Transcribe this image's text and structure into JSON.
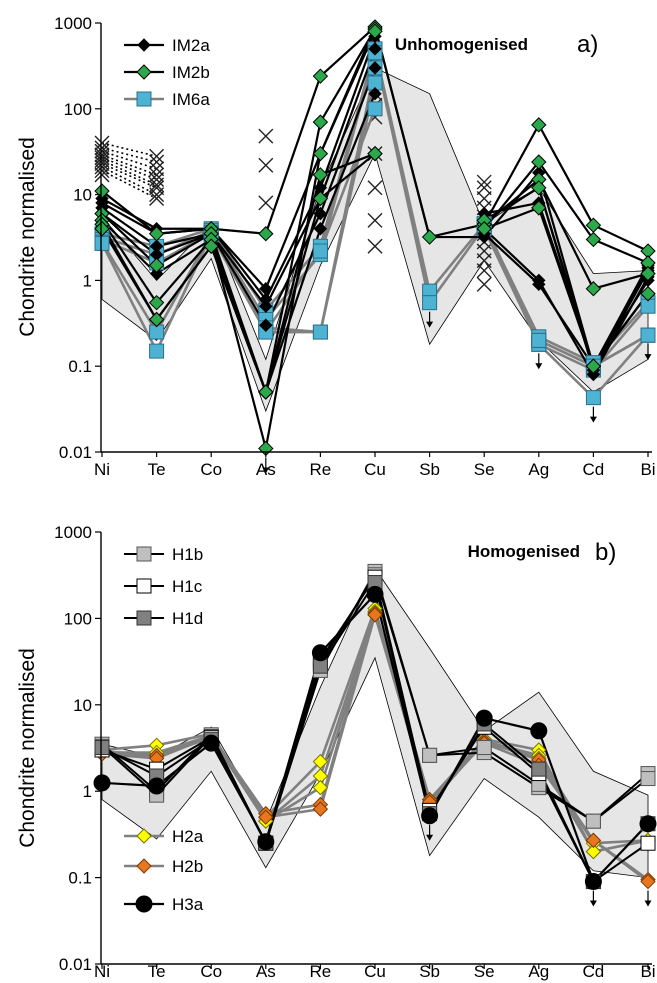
{
  "chart_data": [
    {
      "type": "line",
      "title": "Unhomogenised",
      "panel_label": "a)",
      "ylabel": "Chondrite normalised",
      "y_scale": "log",
      "ylim": [
        0.01,
        1000
      ],
      "y_ticks": [
        "0.01",
        "0.1",
        "1",
        "10",
        "100",
        "1000"
      ],
      "categories": [
        "Ni",
        "Te",
        "Co",
        "As",
        "Re",
        "Cu",
        "Sb",
        "Se",
        "Ag",
        "Cd",
        "Bi"
      ],
      "grid": false,
      "legend_position": "top-left",
      "colors": {
        "IM2a": "#000000",
        "IM2b": "#2aa84a",
        "IM6a": "#4eb3d3",
        "IM6a_line": "#808080",
        "range": "#e6e6e6"
      },
      "range_band": {
        "upper": [
          5.5,
          1.0,
          4.5,
          0.12,
          12,
          300,
          150,
          4.5,
          12,
          1.2,
          1.3
        ],
        "lower": [
          0.6,
          0.2,
          1.8,
          0.03,
          1.5,
          30,
          0.18,
          1.7,
          0.2,
          0.05,
          0.12
        ]
      },
      "crosses": [
        {
          "category": "Ni",
          "values": [
            40,
            35,
            32,
            29,
            27,
            25,
            23,
            21,
            19,
            17
          ]
        },
        {
          "category": "Te",
          "values": [
            28,
            24,
            20,
            17,
            15,
            13,
            12,
            10,
            9
          ]
        },
        {
          "category": "As",
          "values": [
            48,
            22,
            8
          ]
        },
        {
          "category": "Cu",
          "values": [
            280,
            200,
            150,
            110,
            80,
            30,
            12,
            5,
            2.5
          ]
        },
        {
          "category": "Se",
          "values": [
            14,
            12,
            9,
            7,
            5.5,
            4.5,
            3.5,
            2.8,
            2.2,
            1.7,
            1.3,
            0.9
          ]
        }
      ],
      "series": [
        {
          "name": "IM2a",
          "group": "IM2a",
          "values": [
            9,
            4,
            4,
            0.8,
            30,
            900,
            3.2,
            3.2,
            18,
            0.1,
            1
          ]
        },
        {
          "name": "",
          "group": "IM2a",
          "values": [
            8,
            3.5,
            4,
            0.6,
            12,
            700,
            null,
            5,
            12,
            0.09,
            1.3
          ]
        },
        {
          "name": "",
          "group": "IM2a",
          "values": [
            7,
            2.5,
            3.5,
            0.5,
            9,
            500,
            null,
            6,
            8,
            0.1,
            1.5
          ]
        },
        {
          "name": "",
          "group": "IM2a",
          "values": [
            6,
            2,
            3.5,
            0.3,
            6,
            300,
            null,
            4,
            1,
            0.08,
            1.1
          ]
        },
        {
          "name": "",
          "group": "IM2a",
          "values": [
            5,
            1.2,
            3,
            0.05,
            4,
            150,
            null,
            3.5,
            0.9,
            0.1,
            1.4
          ]
        },
        {
          "name": "IM2b",
          "group": "IM2b",
          "values": [
            11,
            3.5,
            4,
            3.5,
            240,
            900,
            3.2,
            4.5,
            65,
            4.4,
            2.2
          ]
        },
        {
          "name": "",
          "group": "IM2b",
          "values": [
            6,
            1.5,
            3.5,
            0.05,
            70,
            850,
            null,
            4,
            24,
            3,
            1.6
          ]
        },
        {
          "name": "",
          "group": "IM2b",
          "values": [
            5,
            0.55,
            3,
            0.011,
            30,
            800,
            null,
            4.5,
            15,
            0.8,
            1.2
          ]
        },
        {
          "name": "",
          "group": "IM2b",
          "values": [
            4.5,
            0.35,
            2.5,
            0.05,
            17,
            30,
            null,
            5,
            12,
            0.1,
            0.7
          ]
        },
        {
          "name": "",
          "group": "IM2b",
          "values": [
            4,
            0.35,
            2.5,
            0.05,
            9,
            30,
            null,
            4,
            7,
            0.1,
            0.7
          ]
        },
        {
          "name": "IM6a",
          "group": "IM6a",
          "values": [
            3.5,
            2.5,
            4,
            0.45,
            2.5,
            500,
            0.75,
            4.5,
            0.22,
            0.11,
            0.55
          ]
        },
        {
          "name": "",
          "group": "IM6a",
          "values": [
            3.2,
            2,
            3.8,
            0.35,
            2,
            450,
            0.55,
            4.2,
            0.18,
            0.09,
            0.5
          ]
        },
        {
          "name": "",
          "group": "IM6a",
          "values": [
            3,
            1.6,
            3.6,
            0.28,
            0.25,
            300,
            null,
            4,
            0.18,
            0.043,
            0.23
          ]
        },
        {
          "name": "",
          "group": "IM6a",
          "values": [
            2.8,
            0.25,
            3.5,
            0.25,
            0.25,
            200,
            null,
            4.3,
            0.2,
            0.1,
            0.23
          ]
        },
        {
          "name": "",
          "group": "IM6a",
          "values": [
            2.7,
            0.15,
            3.4,
            0.25,
            2.2,
            100,
            null,
            4.6,
            0.2,
            0.1,
            0.23
          ]
        }
      ],
      "below_detection": [
        {
          "category": "As",
          "value": 0.011
        },
        {
          "category": "Sb",
          "value": 0.55
        },
        {
          "category": "Ag",
          "value": 0.18
        },
        {
          "category": "Cd",
          "value": 0.043
        },
        {
          "category": "Bi",
          "value": 0.23
        }
      ]
    },
    {
      "type": "line",
      "title": "Homogenised",
      "panel_label": "b)",
      "ylabel": "Chondrite normalised",
      "y_scale": "log",
      "ylim": [
        0.01,
        1000
      ],
      "y_ticks": [
        "0.01",
        "0.1",
        "1",
        "10",
        "100",
        "1000"
      ],
      "categories": [
        "Ni",
        "Te",
        "Co",
        "As",
        "Re",
        "Cu",
        "Sb",
        "Se",
        "Ag",
        "Cd",
        "Bi"
      ],
      "grid": false,
      "legend_position": "left",
      "colors": {
        "H1b": "#bfbfbf",
        "H1c": "#ffffff",
        "H1d": "#808080",
        "H2a": "#ffff00",
        "H2b": "#e8761e",
        "H3a": "#000000",
        "line_dark": "#000000",
        "line_grey": "#808080",
        "range": "#e6e6e6"
      },
      "range_band": {
        "upper": [
          3.5,
          2.5,
          5.5,
          0.45,
          16,
          380,
          45,
          5,
          14,
          1.7,
          0.9
        ],
        "lower": [
          0.8,
          0.28,
          1.7,
          0.13,
          1.6,
          35,
          0.18,
          1.4,
          0.5,
          0.12,
          0.1
        ]
      },
      "series": [
        {
          "name": "H1b",
          "group": "H1b",
          "values": [
            3.5,
            1.0,
            4.5,
            0.25,
            25,
            350,
            2.6,
            2.8,
            1.1,
            0.45,
            1.6
          ]
        },
        {
          "name": "",
          "group": "H1b",
          "values": [
            3.3,
            0.9,
            4.3,
            0.25,
            30,
            320,
            2.6,
            3.2,
            1.2,
            0.45,
            1.4
          ]
        },
        {
          "name": "H1c",
          "group": "H1c",
          "values": [
            3.0,
            1.8,
            4.2,
            0.25,
            33,
            300,
            0.6,
            5.5,
            1.6,
            0.09,
            0.25
          ]
        },
        {
          "name": "H1d",
          "group": "H1d",
          "values": [
            3.2,
            1.5,
            4.0,
            0.25,
            28,
            260,
            0.55,
            6.0,
            1.8,
            0.09,
            0.42
          ]
        },
        {
          "name": "H2a",
          "group": "H2a",
          "values": [
            3.0,
            3.4,
            4.6,
            0.5,
            2.2,
            130,
            0.8,
            4.0,
            3.0,
            0.2,
            0.27
          ]
        },
        {
          "name": "",
          "group": "H2a",
          "values": [
            2.8,
            2.8,
            4.4,
            0.45,
            1.5,
            120,
            0.7,
            3.8,
            2.6,
            0.25,
            0.27
          ]
        },
        {
          "name": "",
          "group": "H2a",
          "values": [
            2.7,
            2.5,
            4.2,
            0.45,
            1.1,
            110,
            0.8,
            3.7,
            2.4,
            0.2,
            0.27
          ]
        },
        {
          "name": "H2b",
          "group": "H2b",
          "values": [
            2.9,
            2.6,
            4.4,
            0.55,
            0.7,
            115,
            0.8,
            3.8,
            2.3,
            0.27,
            0.095
          ]
        },
        {
          "name": "",
          "group": "H2b",
          "values": [
            2.7,
            2.4,
            4.3,
            0.5,
            0.62,
            110,
            0.75,
            3.6,
            2.0,
            0.27,
            0.09
          ]
        },
        {
          "name": "H3a",
          "group": "H3a",
          "values": [
            1.25,
            1.15,
            3.6,
            0.26,
            40,
            190,
            0.52,
            7.0,
            5.0,
            0.09,
            0.42
          ]
        }
      ],
      "below_detection": [
        {
          "category": "Sb",
          "value": 0.52
        },
        {
          "category": "Cd",
          "value": 0.09
        },
        {
          "category": "Bi",
          "value": 0.09
        }
      ]
    }
  ]
}
